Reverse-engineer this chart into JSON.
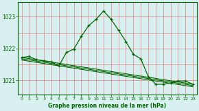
{
  "xlabel": "Graphe pression niveau de la mer (hPa)",
  "ylim": [
    1020.55,
    1023.45
  ],
  "xlim": [
    -0.5,
    23.5
  ],
  "yticks": [
    1021,
    1022,
    1023
  ],
  "xticks": [
    0,
    1,
    2,
    3,
    4,
    5,
    6,
    7,
    8,
    9,
    10,
    11,
    12,
    13,
    14,
    15,
    16,
    17,
    18,
    19,
    20,
    21,
    22,
    23
  ],
  "bg_color": "#d8f0f0",
  "grid_v_color": "#e08080",
  "grid_h_color": "#e08080",
  "line_color": "#006600",
  "series1_x": [
    0,
    1,
    2,
    3,
    4,
    5,
    6,
    7,
    8,
    9,
    10,
    11,
    12,
    13,
    14,
    15,
    16,
    17,
    18,
    19,
    20,
    21,
    22,
    23
  ],
  "series1_y": [
    1021.72,
    1021.75,
    1021.65,
    1021.62,
    1021.58,
    1021.45,
    1021.88,
    1021.98,
    1022.38,
    1022.72,
    1022.92,
    1023.18,
    1022.92,
    1022.58,
    1022.22,
    1021.82,
    1021.68,
    1021.12,
    1020.88,
    1020.88,
    1020.92,
    1020.98,
    1020.98,
    1020.88
  ],
  "series2_y": [
    1021.72,
    1020.88
  ],
  "series3_y": [
    1021.68,
    1020.84
  ],
  "series4_y": [
    1021.64,
    1020.8
  ],
  "trend_x": [
    0,
    23
  ]
}
